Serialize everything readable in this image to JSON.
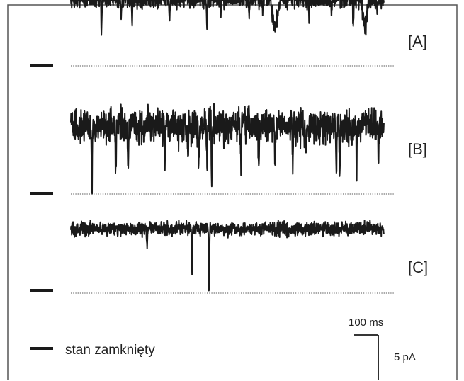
{
  "chart_data": {
    "type": "line",
    "title": "",
    "xlabel": "",
    "ylabel": "",
    "x_unit": "ms",
    "y_unit": "pA",
    "traces": [
      {
        "label": "[A]",
        "baseline_current_pA": 0,
        "open_level_pA": 7.4,
        "noise_pA": 0.5,
        "closing_events": [
          {
            "t_ms": 45,
            "depth_pA": 3.9
          },
          {
            "t_ms": 74,
            "depth_pA": 2.0
          },
          {
            "t_ms": 90,
            "depth_pA": 3.1
          },
          {
            "t_ms": 145,
            "depth_pA": 2.2
          },
          {
            "t_ms": 200,
            "depth_pA": 3.2
          },
          {
            "t_ms": 220,
            "depth_pA": 1.7
          },
          {
            "t_ms": 262,
            "depth_pA": 2.5
          },
          {
            "t_ms": 282,
            "depth_pA": 1.8
          },
          {
            "t_ms": 300,
            "depth_pA": 3.3,
            "dwell_ms": 12
          },
          {
            "t_ms": 350,
            "depth_pA": 2.0
          },
          {
            "t_ms": 383,
            "depth_pA": 1.8
          },
          {
            "t_ms": 415,
            "depth_pA": 3.0
          },
          {
            "t_ms": 432,
            "depth_pA": 3.4,
            "dwell_ms": 10
          },
          {
            "t_ms": 450,
            "depth_pA": 1.5
          },
          {
            "t_ms": 490,
            "depth_pA": 1.7
          }
        ]
      },
      {
        "label": "[B]",
        "baseline_current_pA": 0,
        "open_level_pA": 7.5,
        "noise_pA": 0.9,
        "closing_events": [
          {
            "t_ms": 31,
            "depth_pA": 7.0
          },
          {
            "t_ms": 66,
            "depth_pA": 4.3
          },
          {
            "t_ms": 84,
            "depth_pA": 4.4
          },
          {
            "t_ms": 138,
            "depth_pA": 4.1
          },
          {
            "t_ms": 172,
            "depth_pA": 3.3
          },
          {
            "t_ms": 188,
            "depth_pA": 3.9
          },
          {
            "t_ms": 200,
            "depth_pA": 4.7
          },
          {
            "t_ms": 207,
            "depth_pA": 6.9
          },
          {
            "t_ms": 250,
            "depth_pA": 4.9
          },
          {
            "t_ms": 276,
            "depth_pA": 5.9
          },
          {
            "t_ms": 300,
            "depth_pA": 3.2
          },
          {
            "t_ms": 326,
            "depth_pA": 4.6
          },
          {
            "t_ms": 345,
            "depth_pA": 3.9
          },
          {
            "t_ms": 390,
            "depth_pA": 5.9
          },
          {
            "t_ms": 395,
            "depth_pA": 5.4
          },
          {
            "t_ms": 420,
            "depth_pA": 4.4
          },
          {
            "t_ms": 452,
            "depth_pA": 5.0
          }
        ]
      },
      {
        "label": "[C]",
        "baseline_current_pA": 0,
        "open_level_pA": 7.1,
        "noise_pA": 0.35,
        "closing_events": [
          {
            "t_ms": 112,
            "depth_pA": 2.1
          },
          {
            "t_ms": 178,
            "depth_pA": 4.5
          },
          {
            "t_ms": 203,
            "depth_pA": 7.4
          }
        ]
      }
    ],
    "closed_state_label": "stan zamknięty",
    "scale_bar": {
      "time_label": "100 ms",
      "time_ms": 100,
      "current_label": "5 pA",
      "current_pA": 5
    },
    "grid": false,
    "legend": "bottom-left",
    "colors": {
      "trace": "#1a1a1a",
      "baseline": "#555555",
      "frame": "#555555"
    }
  }
}
